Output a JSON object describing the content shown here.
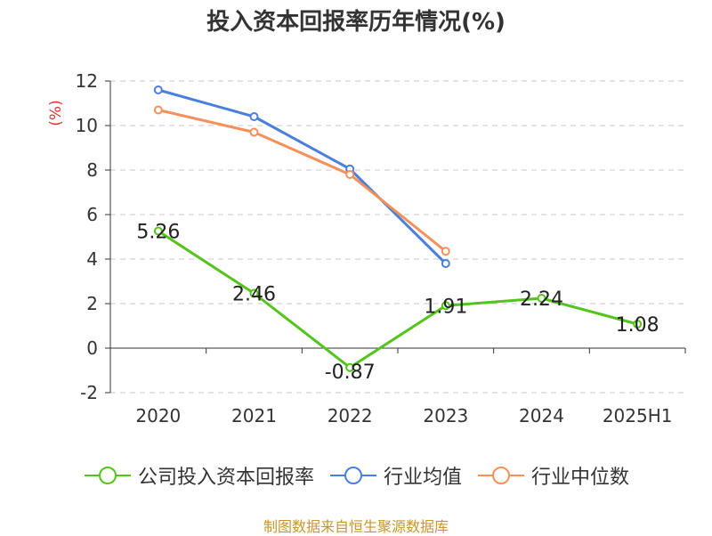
{
  "chart_data": {
    "type": "line",
    "title": "投入资本回报率历年情况(%)",
    "ylabel": "(%)",
    "xlabel": "",
    "categories": [
      "2020",
      "2021",
      "2022",
      "2023",
      "2024",
      "2025H1"
    ],
    "ylim": [
      -2,
      12
    ],
    "yticks": [
      -2,
      0,
      2,
      4,
      6,
      8,
      10,
      12
    ],
    "grid": true,
    "legend_position": "bottom",
    "series": [
      {
        "name": "公司投入资本回报率",
        "color": "#52c41a",
        "values": [
          5.26,
          2.46,
          -0.87,
          1.91,
          2.24,
          1.08
        ],
        "data_labels": [
          "5.26",
          "2.46",
          "-0.87",
          "1.91",
          "2.24",
          "1.08"
        ]
      },
      {
        "name": "行业均值",
        "color": "#4a7fdc",
        "values": [
          11.6,
          10.4,
          8.05,
          3.8,
          null,
          null
        ]
      },
      {
        "name": "行业中位数",
        "color": "#f5905a",
        "values": [
          10.7,
          9.7,
          7.8,
          4.35,
          null,
          null
        ]
      }
    ]
  },
  "source_text": "制图数据来自恒生聚源数据库",
  "colors": {
    "axis": "#333333",
    "grid": "#c8c8c8",
    "ylabel": "#e03030",
    "source": "#c8962a"
  }
}
